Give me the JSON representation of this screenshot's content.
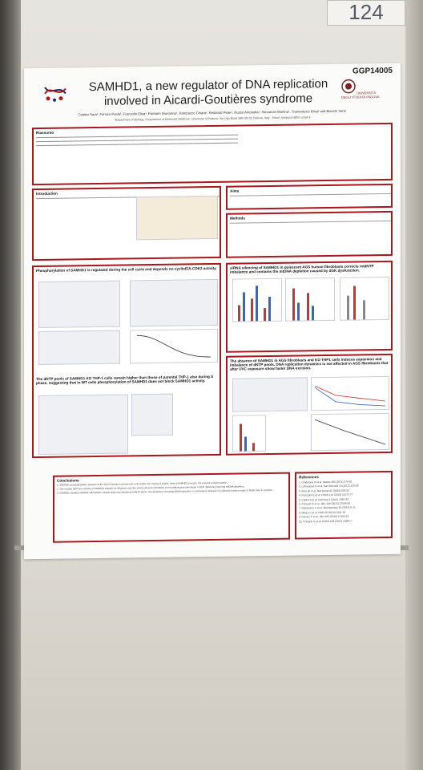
{
  "board": {
    "number": "124"
  },
  "poster": {
    "code": "GGP14005",
    "title_line1": "SAMHD1, a new regulator of DNA replication",
    "title_line2": "involved in Aicardi-Goutières syndrome",
    "authors": "Coletta Sara¹, Ferraro Paola¹, Franzolin Elisa¹, Pontarin Giovanna¹, Rampazzo Chiara¹, Reichard Peter¹, Russo Antonella¹, Stevanoni Martina¹, Tramentozzi Elisa¹ and Bianchi Vera¹",
    "affiliation": "¹Department of Biology, ²Department of Molecular Medicine, University of Padova, Via Ugo Bassi 58B 35131 Padova, Italy · Email: rampazzo@bio.unipd.it",
    "logo_right_text": "UNIVERSITÀ DEGLI STUDI DI PADOVA",
    "sections": {
      "riassunto": "Riassunto",
      "introduction": "Introduction",
      "aims": "Aims",
      "methods": "Methods",
      "phospho": "Phosphorylation of SAMHD1 is regulated during the cell cycle and depends on cyclinE/A-CDK2 activity.",
      "dntp_pools": "The dNTP pools of SAMHD1 KO THP-1 cells remain higher than those of parental THP-1 also during S phase, suggesting that in WT cells phosphorylation of SAMHD1 does not block SAMHD1 activity.",
      "sirna": "siRNA silencing of SAMHD1 in quiescent AGS human fibroblasts corrects mtdNTP imbalance and contains the mtDNA depletion caused by dGK dysfunction.",
      "absence": "The absence of SAMHD1 in AGS fibroblasts and KO THP1 cells induces expansion and imbalance of dNTP pools. DNA replication dynamics is not affected in AGS fibroblasts that after UVC exposure show faster DNA excision.",
      "conclusions": "Conclusions",
      "references": "References"
    },
    "conclusions": [
      "1. SAMHD1 phosphorylation appears at the G1/S transition and persists until mitotic exit. During S-phase, when pSAMHD1 prevails, the enzyme remains active.",
      "2. The nuclear dNTPase activity of SAMHD1 extends its influence over the whole cell and contributes to the pathological phenotype of dGK deficiency favoring mtDNA depletion.",
      "3. SAMHD1-mutated SAMHD1 fibroblasts contain large and imbalanced dNTP pools. The dynamics of nuclear DNA replication is unchanged, whereas UV-induced excision repair is faster than in controls."
    ],
    "references": [
      "1. Goldstone D et al. Nature 480 (2011) 379-82",
      "2. Lahouassa H et al. Nat Immunol 13 (2012) 223-28",
      "3. Rice GI et al. Nat Genet 41 (2009) 829-32",
      "4. Franzolin E et al. PNAS 110 (2013) 14272-77",
      "5. Cribier A et al. Cell Rep 3 (2013) 1036-43",
      "6. Pontarin G et al. JBC 290 (2015) 27096-06",
      "7. Rampazzo C et al. Biochemistry 55 (2016) 5-11",
      "8. Miazzi C et al. NAR 42 (2014) 2441-52",
      "9. Ferraro P et al. JBC 285 (2010) 16152-61",
      "10. Pontarin G et al. PNAS 109 (2012) 13302-7"
    ]
  }
}
